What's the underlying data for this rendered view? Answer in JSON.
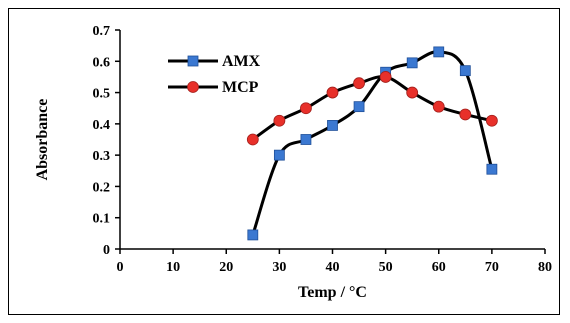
{
  "chart_data": {
    "type": "line",
    "xlabel": "Temp / °C",
    "ylabel": "Absorbance",
    "xlim": [
      0,
      80
    ],
    "ylim": [
      0,
      0.7
    ],
    "xticks": [
      "0",
      "10",
      "20",
      "30",
      "40",
      "50",
      "60",
      "70",
      "80"
    ],
    "yticks": [
      "0",
      "0.1",
      "0.2",
      "0.3",
      "0.4",
      "0.5",
      "0.6",
      "0.7"
    ],
    "grid": false,
    "legend_position": "top-left",
    "series": [
      {
        "name": "AMX",
        "marker": "square",
        "color": "#3b78d1",
        "x": [
          25,
          30,
          35,
          40,
          45,
          50,
          55,
          60,
          65,
          70
        ],
        "y": [
          0.045,
          0.3,
          0.35,
          0.395,
          0.455,
          0.565,
          0.595,
          0.63,
          0.57,
          0.255
        ]
      },
      {
        "name": "MCP",
        "marker": "circle",
        "color": "#e8302a",
        "x": [
          25,
          30,
          35,
          40,
          45,
          50,
          55,
          60,
          65,
          70
        ],
        "y": [
          0.35,
          0.41,
          0.45,
          0.5,
          0.53,
          0.55,
          0.5,
          0.455,
          0.43,
          0.41
        ]
      }
    ]
  }
}
